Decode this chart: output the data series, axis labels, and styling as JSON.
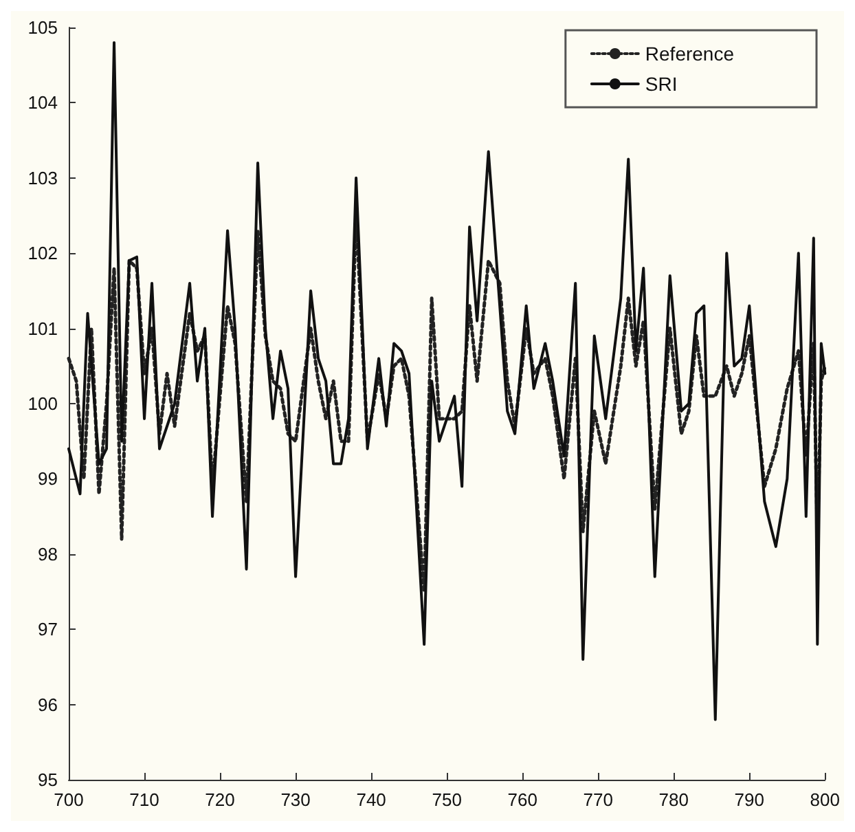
{
  "chart_data": {
    "type": "line",
    "xlim": [
      700,
      800
    ],
    "ylim": [
      95,
      105
    ],
    "xticks": [
      700,
      710,
      720,
      730,
      740,
      750,
      760,
      770,
      780,
      790,
      800
    ],
    "yticks": [
      95,
      96,
      97,
      98,
      99,
      100,
      101,
      102,
      103,
      104,
      105
    ],
    "grid": false,
    "legend": "top right",
    "marker": "none",
    "series": [
      {
        "name": "Reference",
        "color": "#222222",
        "line_style": "dotted",
        "x": [
          700,
          701,
          702,
          703,
          704,
          705,
          706,
          707,
          708,
          709,
          710,
          711,
          712,
          713,
          714,
          716,
          717,
          718,
          719,
          721,
          722,
          723.5,
          725,
          726,
          727,
          728,
          729,
          730,
          732,
          733,
          734,
          735,
          736,
          737,
          738,
          739.5,
          741,
          742,
          743,
          744,
          745,
          747,
          748,
          749,
          751,
          752,
          753,
          754,
          755.5,
          757,
          758,
          759,
          760.5,
          761.5,
          763,
          764,
          765.5,
          767,
          768,
          769.5,
          771,
          773,
          774,
          775,
          776,
          777.5,
          779.5,
          781,
          782,
          783,
          784,
          785.5,
          787,
          788,
          789,
          790,
          792,
          793.5,
          795,
          796.5,
          797.5,
          798.5,
          799,
          799.5,
          800
        ],
        "values": [
          100.6,
          100.3,
          99,
          101,
          98.8,
          100,
          101.8,
          98.2,
          101.9,
          101.8,
          100.4,
          101,
          99.6,
          100.4,
          99.7,
          101.2,
          100.7,
          100.9,
          98.9,
          101.3,
          100.8,
          98.7,
          102.3,
          100.9,
          100.3,
          100.2,
          99.6,
          99.5,
          101,
          100.3,
          99.8,
          100.3,
          99.5,
          99.5,
          102.5,
          99.5,
          100.4,
          99.8,
          100.5,
          100.6,
          100.1,
          97.5,
          101.4,
          99.8,
          99.8,
          99.9,
          101.3,
          100.3,
          101.9,
          101.6,
          100.3,
          99.7,
          101,
          100.4,
          100.6,
          100.1,
          99,
          100.6,
          98.3,
          99.9,
          99.2,
          100.5,
          101.4,
          100.5,
          101.1,
          98.6,
          101,
          99.6,
          99.9,
          100.9,
          100.1,
          100.1,
          100.5,
          100.1,
          100.4,
          100.9,
          98.9,
          99.4,
          100.2,
          100.7,
          99.3,
          100.8,
          98.2,
          100.3,
          100.5
        ]
      },
      {
        "name": "SRI",
        "color": "#111111",
        "line_style": "solid",
        "x": [
          700,
          701.5,
          702.5,
          704,
          705,
          706,
          707,
          708,
          709,
          710,
          711,
          712,
          714,
          716,
          717,
          718,
          719,
          721,
          722,
          723.5,
          725,
          726,
          727,
          728,
          729,
          730,
          732,
          733,
          734,
          735,
          736,
          737,
          738,
          739.5,
          741,
          742,
          743,
          744,
          745,
          747,
          748,
          749,
          751,
          752,
          753,
          754,
          755.5,
          757,
          758,
          759,
          760.5,
          761.5,
          763,
          764,
          765.5,
          767,
          768,
          769.5,
          771,
          773,
          774,
          775,
          776,
          777.5,
          779.5,
          781,
          782,
          783,
          784,
          785.5,
          787,
          788,
          789,
          790,
          792,
          793.5,
          795,
          796.5,
          797.5,
          798.5,
          799,
          799.5,
          800
        ],
        "values": [
          99.4,
          98.8,
          101.2,
          99.2,
          99.4,
          104.8,
          99.5,
          101.9,
          101.95,
          99.8,
          101.6,
          99.4,
          100,
          101.6,
          100.3,
          101,
          98.5,
          102.3,
          101,
          97.8,
          103.2,
          101,
          99.8,
          100.7,
          100.2,
          97.7,
          101.5,
          100.6,
          100.3,
          99.2,
          99.2,
          99.8,
          103,
          99.4,
          100.6,
          99.7,
          100.8,
          100.7,
          100.4,
          96.8,
          100.3,
          99.5,
          100.1,
          98.9,
          102.35,
          101.1,
          103.35,
          101.3,
          99.9,
          99.6,
          101.3,
          100.2,
          100.8,
          100.3,
          99.3,
          101.6,
          96.6,
          100.9,
          99.8,
          101.4,
          103.25,
          100.7,
          101.8,
          97.7,
          101.7,
          99.9,
          100,
          101.2,
          101.3,
          95.8,
          102,
          100.5,
          100.6,
          101.3,
          98.7,
          98.1,
          99,
          102,
          98.5,
          102.2,
          96.8,
          100.8,
          100.4
        ]
      }
    ]
  }
}
